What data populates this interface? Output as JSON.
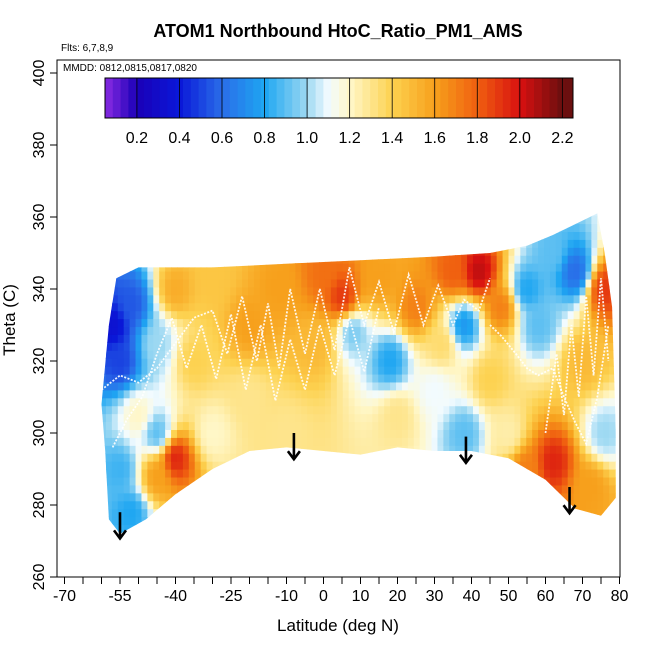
{
  "chart_data": {
    "type": "heatmap",
    "title": "ATOM1 Northbound HtoC_Ratio_PM1_AMS",
    "flights_label": "Flts: 6,7,8,9",
    "dates_label": "MMDD: 0812,0815,0817,0820",
    "xlabel": "Latitude (deg N)",
    "ylabel": "Theta (C)",
    "xlim": [
      -70,
      80
    ],
    "ylim": [
      260,
      400
    ],
    "x_ticks": [
      {
        "value": -70,
        "label": "-70"
      },
      {
        "value": -55,
        "label": "-55"
      },
      {
        "value": -40,
        "label": "-40"
      },
      {
        "value": -25,
        "label": "-25"
      },
      {
        "value": -10,
        "label": "-10"
      },
      {
        "value": 0,
        "label": "0"
      },
      {
        "value": 10,
        "label": "10"
      },
      {
        "value": 20,
        "label": "20"
      },
      {
        "value": 30,
        "label": "30"
      },
      {
        "value": 40,
        "label": "40"
      },
      {
        "value": 50,
        "label": "50"
      },
      {
        "value": 60,
        "label": "60"
      },
      {
        "value": 70,
        "label": "70"
      },
      {
        "value": 80,
        "label": "80"
      }
    ],
    "x_minor_ticks": [
      -65,
      -60,
      -50,
      -45,
      -35,
      -30,
      -20,
      -15,
      -5,
      5,
      15,
      25,
      35,
      45,
      55,
      65,
      75
    ],
    "y_ticks": [
      {
        "value": 260,
        "label": "260"
      },
      {
        "value": 280,
        "label": "280"
      },
      {
        "value": 300,
        "label": "300"
      },
      {
        "value": 320,
        "label": "320"
      },
      {
        "value": 340,
        "label": "340"
      },
      {
        "value": 360,
        "label": "360"
      },
      {
        "value": 380,
        "label": "380"
      },
      {
        "value": 400,
        "label": "400"
      }
    ],
    "colorbar": {
      "range": [
        0.05,
        2.25
      ],
      "ticks": [
        {
          "value": 0.2,
          "label": "0.2"
        },
        {
          "value": 0.4,
          "label": "0.4"
        },
        {
          "value": 0.6,
          "label": "0.6"
        },
        {
          "value": 0.8,
          "label": "0.8"
        },
        {
          "value": 1.0,
          "label": "1.0"
        },
        {
          "value": 1.2,
          "label": "1.2"
        },
        {
          "value": 1.4,
          "label": "1.4"
        },
        {
          "value": 1.6,
          "label": "1.6"
        },
        {
          "value": 1.8,
          "label": "1.8"
        },
        {
          "value": 2.0,
          "label": "2.0"
        },
        {
          "value": 2.2,
          "label": "2.2"
        }
      ],
      "stops": [
        {
          "v": 0.05,
          "c": "#8a2be2"
        },
        {
          "v": 0.2,
          "c": "#1a00b8"
        },
        {
          "v": 0.4,
          "c": "#0a18d8"
        },
        {
          "v": 0.6,
          "c": "#2a6de8"
        },
        {
          "v": 0.8,
          "c": "#1ea6f2"
        },
        {
          "v": 1.0,
          "c": "#9cd8f2"
        },
        {
          "v": 1.1,
          "c": "#f2fbff"
        },
        {
          "v": 1.2,
          "c": "#fff7c8"
        },
        {
          "v": 1.4,
          "c": "#fdd250"
        },
        {
          "v": 1.6,
          "c": "#f7a01c"
        },
        {
          "v": 1.8,
          "c": "#f06010"
        },
        {
          "v": 2.0,
          "c": "#d81010"
        },
        {
          "v": 2.2,
          "c": "#6b0f0f"
        }
      ]
    },
    "domain_outline": [
      [
        -60,
        308
      ],
      [
        -58,
        330
      ],
      [
        -56,
        343
      ],
      [
        -50,
        346
      ],
      [
        -30,
        346
      ],
      [
        -10,
        347
      ],
      [
        10,
        348
      ],
      [
        30,
        349
      ],
      [
        45,
        350
      ],
      [
        55,
        352
      ],
      [
        62,
        355
      ],
      [
        68,
        358
      ],
      [
        74,
        361
      ],
      [
        76,
        350
      ],
      [
        78,
        335
      ],
      [
        79,
        300
      ],
      [
        79,
        282
      ],
      [
        75,
        277
      ],
      [
        68,
        279
      ],
      [
        60,
        287
      ],
      [
        50,
        293
      ],
      [
        40,
        295
      ],
      [
        30,
        295
      ],
      [
        20,
        296
      ],
      [
        10,
        294
      ],
      [
        0,
        295
      ],
      [
        -10,
        296
      ],
      [
        -20,
        295
      ],
      [
        -30,
        290
      ],
      [
        -40,
        283
      ],
      [
        -48,
        276
      ],
      [
        -55,
        272
      ],
      [
        -58,
        276
      ],
      [
        -59,
        295
      ]
    ],
    "anchors": [
      {
        "lat": -57,
        "theta": 330,
        "ratio": 0.35
      },
      {
        "lat": -55,
        "theta": 320,
        "ratio": 0.5
      },
      {
        "lat": -52,
        "theta": 336,
        "ratio": 0.55
      },
      {
        "lat": -50,
        "theta": 305,
        "ratio": 1.2
      },
      {
        "lat": -55,
        "theta": 290,
        "ratio": 0.85
      },
      {
        "lat": -52,
        "theta": 278,
        "ratio": 0.8
      },
      {
        "lat": -45,
        "theta": 300,
        "ratio": 0.9
      },
      {
        "lat": -45,
        "theta": 288,
        "ratio": 1.6
      },
      {
        "lat": -40,
        "theta": 293,
        "ratio": 1.95
      },
      {
        "lat": -45,
        "theta": 325,
        "ratio": 1.0
      },
      {
        "lat": -40,
        "theta": 340,
        "ratio": 1.55
      },
      {
        "lat": -30,
        "theta": 343,
        "ratio": 1.45
      },
      {
        "lat": -35,
        "theta": 320,
        "ratio": 1.4
      },
      {
        "lat": -30,
        "theta": 300,
        "ratio": 1.2
      },
      {
        "lat": -20,
        "theta": 330,
        "ratio": 1.6
      },
      {
        "lat": -20,
        "theta": 310,
        "ratio": 1.3
      },
      {
        "lat": -12,
        "theta": 340,
        "ratio": 1.6
      },
      {
        "lat": -10,
        "theta": 300,
        "ratio": 1.3
      },
      {
        "lat": -2,
        "theta": 325,
        "ratio": 1.5
      },
      {
        "lat": 5,
        "theta": 338,
        "ratio": 1.9
      },
      {
        "lat": 0,
        "theta": 344,
        "ratio": 1.75
      },
      {
        "lat": 8,
        "theta": 328,
        "ratio": 0.95
      },
      {
        "lat": 15,
        "theta": 343,
        "ratio": 1.6
      },
      {
        "lat": 18,
        "theta": 320,
        "ratio": 0.8
      },
      {
        "lat": 20,
        "theta": 305,
        "ratio": 1.3
      },
      {
        "lat": 25,
        "theta": 335,
        "ratio": 1.7
      },
      {
        "lat": 30,
        "theta": 312,
        "ratio": 1.1
      },
      {
        "lat": 32,
        "theta": 325,
        "ratio": 1.35
      },
      {
        "lat": 35,
        "theta": 345,
        "ratio": 1.8
      },
      {
        "lat": 38,
        "theta": 330,
        "ratio": 0.75
      },
      {
        "lat": 38,
        "theta": 300,
        "ratio": 0.9
      },
      {
        "lat": 42,
        "theta": 345,
        "ratio": 2.05
      },
      {
        "lat": 45,
        "theta": 315,
        "ratio": 1.4
      },
      {
        "lat": 48,
        "theta": 335,
        "ratio": 1.7
      },
      {
        "lat": 50,
        "theta": 300,
        "ratio": 1.25
      },
      {
        "lat": 55,
        "theta": 340,
        "ratio": 0.8
      },
      {
        "lat": 58,
        "theta": 330,
        "ratio": 0.9
      },
      {
        "lat": 55,
        "theta": 290,
        "ratio": 1.7
      },
      {
        "lat": 62,
        "theta": 292,
        "ratio": 1.95
      },
      {
        "lat": 62,
        "theta": 350,
        "ratio": 0.9
      },
      {
        "lat": 68,
        "theta": 345,
        "ratio": 0.6
      },
      {
        "lat": 70,
        "theta": 320,
        "ratio": 1.5
      },
      {
        "lat": 72,
        "theta": 285,
        "ratio": 1.6
      },
      {
        "lat": 76,
        "theta": 340,
        "ratio": 1.9
      },
      {
        "lat": 76,
        "theta": 300,
        "ratio": 1.0
      }
    ],
    "flight_tracks": [
      [
        [
          -60,
          312
        ],
        [
          -55,
          316
        ],
        [
          -50,
          314
        ],
        [
          -45,
          318
        ],
        [
          -40,
          325
        ],
        [
          -35,
          332
        ],
        [
          -30,
          334
        ],
        [
          -26,
          322
        ],
        [
          -22,
          338
        ],
        [
          -18,
          320
        ],
        [
          -15,
          336
        ],
        [
          -12,
          318
        ],
        [
          -9,
          340
        ],
        [
          -5,
          322
        ],
        [
          -1,
          340
        ],
        [
          3,
          323
        ],
        [
          7,
          346
        ],
        [
          11,
          330
        ],
        [
          15,
          342
        ],
        [
          19,
          328
        ],
        [
          23,
          344
        ],
        [
          27,
          330
        ],
        [
          31,
          341
        ],
        [
          35,
          330
        ],
        [
          38,
          337
        ],
        [
          42,
          334
        ],
        [
          45,
          343
        ]
      ],
      [
        [
          -57,
          296
        ],
        [
          -53,
          304
        ],
        [
          -49,
          310
        ],
        [
          -45,
          322
        ],
        [
          -41,
          332
        ],
        [
          -37,
          318
        ],
        [
          -33,
          330
        ],
        [
          -29,
          315
        ],
        [
          -25,
          333
        ],
        [
          -21,
          312
        ],
        [
          -17,
          330
        ],
        [
          -13,
          309
        ],
        [
          -9,
          326
        ],
        [
          -5,
          312
        ],
        [
          -1,
          330
        ],
        [
          3,
          316
        ],
        [
          7,
          332
        ],
        [
          11,
          317
        ],
        [
          15,
          335
        ]
      ],
      [
        [
          45,
          330
        ],
        [
          48,
          327
        ],
        [
          52,
          322
        ],
        [
          55,
          318
        ],
        [
          58,
          316
        ],
        [
          62,
          318
        ],
        [
          65,
          310
        ],
        [
          68,
          303
        ],
        [
          71,
          297
        ],
        [
          74,
          310
        ],
        [
          77,
          330
        ]
      ],
      [
        [
          60,
          300
        ],
        [
          63,
          322
        ],
        [
          65,
          305
        ],
        [
          67,
          330
        ],
        [
          69,
          310
        ],
        [
          71,
          338
        ],
        [
          73,
          316
        ],
        [
          75,
          343
        ],
        [
          77,
          320
        ]
      ]
    ],
    "arrows": [
      {
        "lat": -55,
        "theta": 278,
        "length": 7
      },
      {
        "lat": -8,
        "theta": 300,
        "length": 7
      },
      {
        "lat": 38.5,
        "theta": 299,
        "length": 7
      },
      {
        "lat": 66.5,
        "theta": 285,
        "length": 7
      }
    ]
  }
}
